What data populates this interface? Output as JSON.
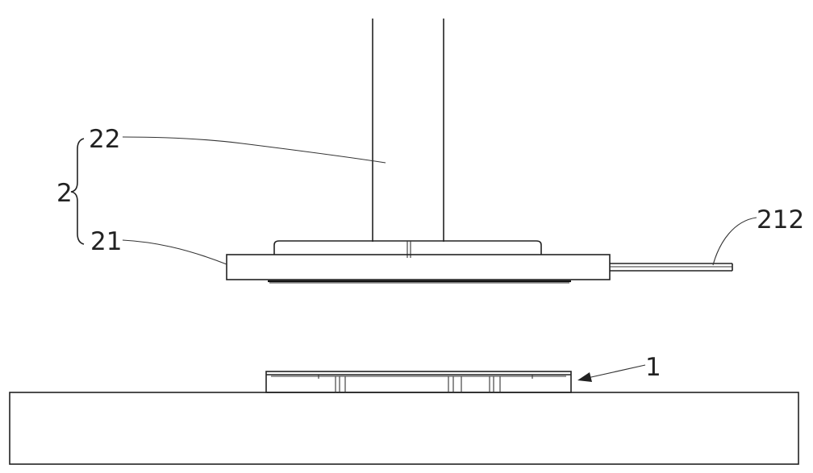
{
  "labels": {
    "label_2": "2",
    "label_21": "21",
    "label_22": "22",
    "label_212": "212",
    "label_1": "1"
  }
}
